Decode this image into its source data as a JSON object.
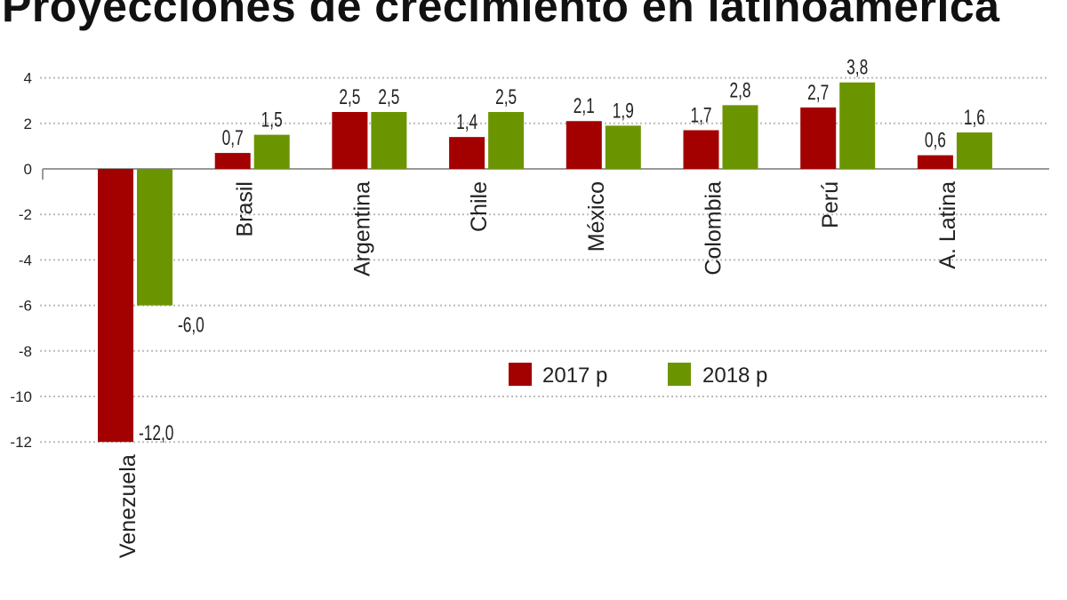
{
  "chart_data": {
    "type": "bar",
    "title": "Proyecciones de crecimiento en latinoamérica",
    "xlabel": "",
    "ylabel": "",
    "categories": [
      "Venezuela",
      "Brasil",
      "Argentina",
      "Chile",
      "México",
      "Colombia",
      "Perú",
      "A. Latina"
    ],
    "series": [
      {
        "name": "2017 p",
        "color": "#a30000",
        "values": [
          -12.0,
          0.7,
          2.5,
          1.4,
          2.1,
          1.7,
          2.7,
          0.6
        ],
        "labels": [
          "-12,0",
          "0,7",
          "2,5",
          "1,4",
          "2,1",
          "1,7",
          "2,7",
          "0,6"
        ]
      },
      {
        "name": "2018 p",
        "color": "#6b9500",
        "values": [
          -6.0,
          1.5,
          2.5,
          2.5,
          1.9,
          2.8,
          3.8,
          1.6
        ],
        "labels": [
          "-6,0",
          "1,5",
          "2,5",
          "2,5",
          "1,9",
          "2,8",
          "3,8",
          "1,6"
        ]
      }
    ],
    "yticks": [
      4,
      2,
      0,
      -2,
      -4,
      -6,
      -8,
      -10,
      -12
    ],
    "ylim": [
      -12,
      4
    ],
    "grid": true,
    "legend": "center"
  }
}
